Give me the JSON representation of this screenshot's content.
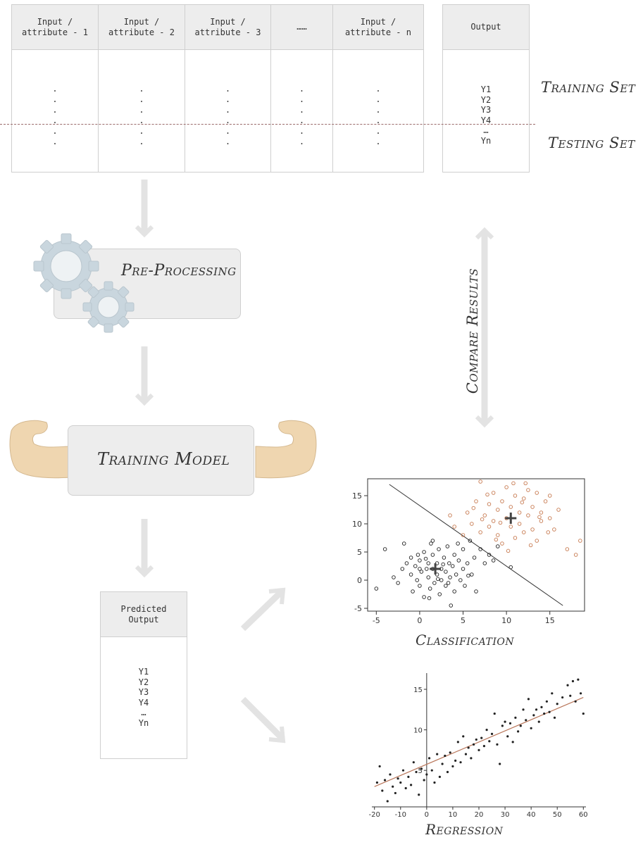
{
  "input_table": {
    "columns": [
      "Input /\nattribute - 1",
      "Input /\nattribute - 2",
      "Input /\nattribute - 3",
      "……",
      "Input /\nattribute - n"
    ]
  },
  "output_table": {
    "header": "Output",
    "values": [
      "Y1",
      "Y2",
      "Y3",
      "Y4",
      "…",
      "Yn"
    ]
  },
  "labels": {
    "training_set": "Training Set",
    "testing_set": "Testing Set",
    "preprocessing": "Pre-Processing",
    "training_model": "Training Model",
    "compare_results": "Compare Results",
    "classification": "Classification",
    "regression": "Regression"
  },
  "predicted_table": {
    "header": "Predicted\nOutput",
    "values": [
      "Y1",
      "Y2",
      "Y3",
      "Y4",
      "…",
      "Yn"
    ]
  },
  "colors": {
    "arrow": "#e3e3e3",
    "gear": "#c9d6de",
    "arm": "#efd6b0",
    "box": "#ededed",
    "class_a": "#222222",
    "class_b": "#c77a50",
    "reg_line": "#b9765a"
  },
  "chart_data": [
    {
      "type": "scatter",
      "name_hint": "classification",
      "xlim": [
        -6,
        19
      ],
      "ylim": [
        -5.5,
        18
      ],
      "xticks": [
        -5,
        0,
        5,
        10,
        15
      ],
      "yticks": [
        -5,
        0,
        5,
        10,
        15
      ],
      "centroids": [
        [
          1.8,
          2.0
        ],
        [
          10.5,
          11.0
        ]
      ],
      "decision_line": [
        [
          -3.5,
          17
        ],
        [
          16.5,
          -4.5
        ]
      ],
      "series": [
        {
          "color": "#222222",
          "points": [
            [
              -5,
              -1.5
            ],
            [
              -4,
              5.5
            ],
            [
              -3,
              0.5
            ],
            [
              -2.5,
              -0.5
            ],
            [
              -2,
              2
            ],
            [
              -1.8,
              6.5
            ],
            [
              -1.5,
              3
            ],
            [
              -1,
              1
            ],
            [
              -1,
              4
            ],
            [
              -0.8,
              -2
            ],
            [
              -0.5,
              2.5
            ],
            [
              -0.3,
              0
            ],
            [
              0,
              3.5
            ],
            [
              0,
              -1
            ],
            [
              0.2,
              1.5
            ],
            [
              0.5,
              5
            ],
            [
              0.5,
              -3
            ],
            [
              0.8,
              2
            ],
            [
              1,
              0.5
            ],
            [
              1,
              3
            ],
            [
              1.2,
              -1.5
            ],
            [
              1.3,
              6.5
            ],
            [
              1.5,
              2
            ],
            [
              1.5,
              4.5
            ],
            [
              1.7,
              -0.5
            ],
            [
              2,
              1
            ],
            [
              2,
              3
            ],
            [
              2.2,
              5.5
            ],
            [
              2.3,
              -2.5
            ],
            [
              2.5,
              2
            ],
            [
              2.5,
              0
            ],
            [
              2.8,
              4
            ],
            [
              3,
              1.5
            ],
            [
              3,
              -1
            ],
            [
              3.2,
              6
            ],
            [
              3.4,
              3
            ],
            [
              3.5,
              0.5
            ],
            [
              3.6,
              -4.5
            ],
            [
              3.8,
              2.5
            ],
            [
              4,
              4.5
            ],
            [
              4,
              -2
            ],
            [
              4.2,
              1
            ],
            [
              4.5,
              3.5
            ],
            [
              4.7,
              0
            ],
            [
              5,
              5.5
            ],
            [
              5,
              2
            ],
            [
              5.2,
              -1
            ],
            [
              5.5,
              3
            ],
            [
              5.8,
              7
            ],
            [
              6,
              1
            ],
            [
              6.3,
              4
            ],
            [
              6.5,
              -2
            ],
            [
              7,
              5.5
            ],
            [
              7.5,
              3
            ],
            [
              8,
              4.5
            ],
            [
              8.5,
              3.5
            ],
            [
              9,
              6
            ],
            [
              10.5,
              2.3
            ],
            [
              1.5,
              7
            ],
            [
              0,
              2
            ],
            [
              2.7,
              2.8
            ],
            [
              3.3,
              -0.5
            ],
            [
              -0.2,
              4.5
            ],
            [
              1.1,
              -3.2
            ],
            [
              4.4,
              6.5
            ],
            [
              2.1,
              0.2
            ],
            [
              5.6,
              0.8
            ],
            [
              0.7,
              3.8
            ]
          ]
        },
        {
          "color": "#c77a50",
          "points": [
            [
              3.5,
              11.5
            ],
            [
              4,
              9.5
            ],
            [
              5,
              8
            ],
            [
              5.5,
              12
            ],
            [
              6,
              10
            ],
            [
              6.5,
              14
            ],
            [
              7,
              8.5
            ],
            [
              7,
              17.5
            ],
            [
              7.5,
              11.5
            ],
            [
              8,
              13.5
            ],
            [
              8,
              9.5
            ],
            [
              8.5,
              15.5
            ],
            [
              8.5,
              10.5
            ],
            [
              9,
              12.5
            ],
            [
              9,
              8
            ],
            [
              9.5,
              14
            ],
            [
              9.5,
              6.5
            ],
            [
              10,
              16.5
            ],
            [
              10,
              11
            ],
            [
              10.5,
              9.5
            ],
            [
              10.5,
              13
            ],
            [
              11,
              15
            ],
            [
              11,
              7.5
            ],
            [
              11.5,
              12
            ],
            [
              11.5,
              10
            ],
            [
              12,
              14.5
            ],
            [
              12,
              8.5
            ],
            [
              12.5,
              16
            ],
            [
              12.5,
              11.5
            ],
            [
              13,
              13
            ],
            [
              13,
              9
            ],
            [
              13.5,
              15.5
            ],
            [
              13.5,
              7
            ],
            [
              14,
              12
            ],
            [
              14,
              10.5
            ],
            [
              14.5,
              14
            ],
            [
              15,
              11
            ],
            [
              15,
              15
            ],
            [
              15.5,
              9
            ],
            [
              16,
              12.5
            ],
            [
              17,
              5.5
            ],
            [
              18,
              4.5
            ],
            [
              18.5,
              7
            ],
            [
              6.2,
              12.8
            ],
            [
              7.8,
              15.2
            ],
            [
              9.3,
              10.2
            ],
            [
              10.8,
              17.2
            ],
            [
              11.8,
              13.8
            ],
            [
              12.8,
              6.2
            ],
            [
              13.8,
              11.2
            ],
            [
              8.8,
              7.2
            ],
            [
              10.2,
              5.2
            ],
            [
              7.2,
              10.8
            ],
            [
              12.2,
              17.2
            ],
            [
              14.8,
              8.5
            ]
          ]
        }
      ]
    },
    {
      "type": "scatter",
      "name_hint": "regression",
      "xlim": [
        -21,
        61
      ],
      "ylim": [
        0.5,
        17
      ],
      "xticks": [
        -20,
        -10,
        0,
        10,
        20,
        30,
        40,
        50,
        60
      ],
      "yticks": [
        5,
        10,
        15
      ],
      "fit_line": [
        [
          -20,
          3
        ],
        [
          60,
          14
        ]
      ],
      "points": [
        [
          -19,
          3.5
        ],
        [
          -18,
          5.5
        ],
        [
          -17,
          2.5
        ],
        [
          -16,
          3.8
        ],
        [
          -15,
          1.2
        ],
        [
          -14,
          4.5
        ],
        [
          -13,
          3
        ],
        [
          -12,
          2.2
        ],
        [
          -11,
          4
        ],
        [
          -10,
          3.5
        ],
        [
          -9,
          5
        ],
        [
          -8,
          2.8
        ],
        [
          -7,
          4.2
        ],
        [
          -6,
          3.2
        ],
        [
          -5,
          6
        ],
        [
          -4,
          4.8
        ],
        [
          -3,
          2
        ],
        [
          -2,
          5.2
        ],
        [
          -1,
          3.8
        ],
        [
          0,
          4.5
        ],
        [
          1,
          6.5
        ],
        [
          2,
          5
        ],
        [
          3,
          3.5
        ],
        [
          4,
          7
        ],
        [
          5,
          4.2
        ],
        [
          6,
          5.8
        ],
        [
          7,
          6.8
        ],
        [
          8,
          4.8
        ],
        [
          9,
          7.2
        ],
        [
          10,
          5.5
        ],
        [
          11,
          6.2
        ],
        [
          12,
          8.5
        ],
        [
          13,
          6
        ],
        [
          14,
          9.2
        ],
        [
          15,
          7
        ],
        [
          16,
          7.8
        ],
        [
          17,
          6.5
        ],
        [
          18,
          8.2
        ],
        [
          19,
          8.8
        ],
        [
          20,
          7.5
        ],
        [
          21,
          9
        ],
        [
          22,
          8
        ],
        [
          23,
          10
        ],
        [
          24,
          8.6
        ],
        [
          25,
          9.5
        ],
        [
          26,
          12
        ],
        [
          27,
          8.2
        ],
        [
          28,
          5.8
        ],
        [
          29,
          10.5
        ],
        [
          30,
          11
        ],
        [
          31,
          9.2
        ],
        [
          32,
          10.8
        ],
        [
          33,
          8.5
        ],
        [
          34,
          11.5
        ],
        [
          35,
          9.8
        ],
        [
          36,
          10.5
        ],
        [
          37,
          12.5
        ],
        [
          38,
          11.2
        ],
        [
          39,
          13.8
        ],
        [
          40,
          10.2
        ],
        [
          41,
          11.8
        ],
        [
          42,
          12.5
        ],
        [
          43,
          11
        ],
        [
          44,
          12.8
        ],
        [
          45,
          12
        ],
        [
          46,
          13.5
        ],
        [
          47,
          12.2
        ],
        [
          48,
          14.5
        ],
        [
          49,
          11.5
        ],
        [
          50,
          13.2
        ],
        [
          52,
          14
        ],
        [
          54,
          15.5
        ],
        [
          55,
          14.2
        ],
        [
          56,
          16
        ],
        [
          57,
          13.5
        ],
        [
          58,
          16.2
        ],
        [
          59,
          14.5
        ],
        [
          60,
          12
        ]
      ]
    }
  ]
}
